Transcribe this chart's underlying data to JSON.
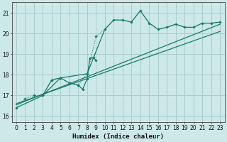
{
  "xlabel": "Humidex (Indice chaleur)",
  "xlim": [
    -0.5,
    23.5
  ],
  "ylim": [
    15.7,
    21.5
  ],
  "yticks": [
    16,
    17,
    18,
    19,
    20,
    21
  ],
  "xticks": [
    0,
    1,
    2,
    3,
    4,
    5,
    6,
    7,
    8,
    9,
    10,
    11,
    12,
    13,
    14,
    15,
    16,
    17,
    18,
    19,
    20,
    21,
    22,
    23
  ],
  "bg_color": "#cce8e8",
  "grid_color": "#aacccc",
  "line_color": "#1a7a6a",
  "series": {
    "dotted_upper": {
      "x": [
        0,
        1,
        2,
        3,
        4,
        5,
        6,
        7,
        8,
        9,
        10,
        11,
        12,
        13,
        14,
        15,
        16,
        17,
        18,
        19,
        20,
        21,
        22,
        23
      ],
      "y": [
        16.4,
        16.85,
        17.0,
        17.0,
        17.75,
        17.85,
        17.6,
        17.5,
        18.05,
        19.85,
        20.2,
        20.65,
        20.65,
        20.55,
        21.1,
        20.5,
        20.2,
        20.3,
        20.45,
        20.3,
        20.3,
        20.5,
        20.5,
        20.55
      ]
    },
    "line_solid_upper": {
      "x": [
        0,
        3,
        5,
        8,
        10,
        11,
        12,
        13,
        14,
        15,
        16,
        17,
        18,
        19,
        20,
        21,
        22,
        23
      ],
      "y": [
        16.4,
        17.0,
        17.85,
        18.05,
        20.2,
        20.65,
        20.65,
        20.55,
        21.1,
        20.5,
        20.2,
        20.3,
        20.45,
        20.3,
        20.3,
        20.5,
        20.5,
        20.55
      ]
    },
    "line_wiggle": {
      "x": [
        3,
        4,
        5,
        6,
        7,
        7.5,
        8,
        8.3,
        8.7,
        9
      ],
      "y": [
        17.0,
        17.75,
        17.85,
        17.6,
        17.5,
        17.3,
        17.8,
        18.8,
        18.85,
        18.7
      ]
    },
    "line_linear1": {
      "x": [
        0,
        23
      ],
      "y": [
        16.55,
        20.45
      ]
    },
    "line_linear2": {
      "x": [
        0,
        23
      ],
      "y": [
        16.6,
        20.1
      ]
    }
  }
}
